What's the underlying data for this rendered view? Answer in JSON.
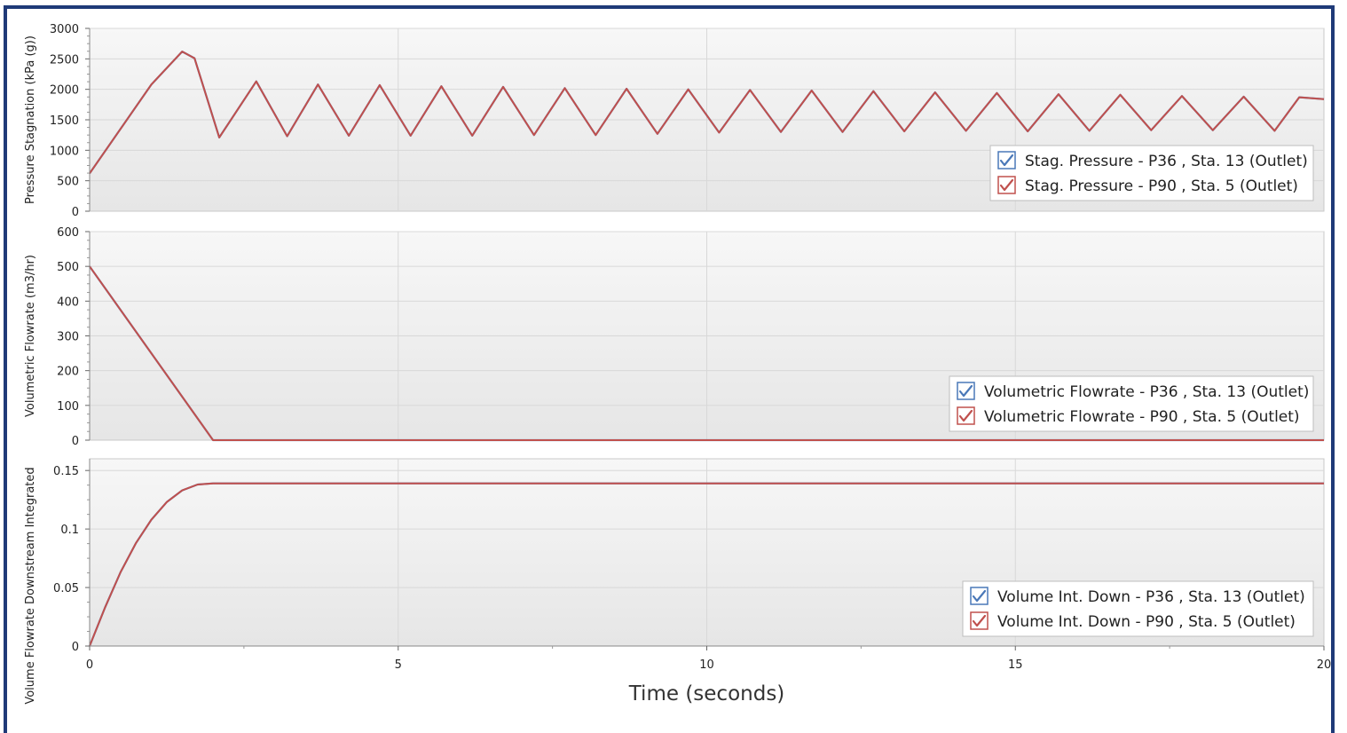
{
  "colors": {
    "series_p36": "#4a78b8",
    "series_p90": "#c0504d",
    "frame": "#1f3a78",
    "grid": "#d8d8d8",
    "plot_top": "#f7f7f7",
    "plot_bottom": "#e6e6e6"
  },
  "chart_data": [
    {
      "type": "line",
      "ylabel": "Pressure Stagnation (kPa (g))",
      "ylim": [
        0,
        3000
      ],
      "yticks": [
        "0",
        "500",
        "1000",
        "1500",
        "2000",
        "2500",
        "3000"
      ],
      "xlim": [
        0,
        20
      ],
      "grid": true,
      "legend_position": "bottom-right",
      "legend": [
        {
          "label": "Stag. Pressure - P36 , Sta. 13 (Outlet)",
          "color_key": "series_p36",
          "checked": true
        },
        {
          "label": "Stag. Pressure - P90 , Sta. 5 (Outlet)",
          "color_key": "series_p90",
          "checked": true
        }
      ],
      "series": [
        {
          "name": "Stag. Pressure - P36 , Sta. 13 (Outlet)",
          "color_key": "series_p36",
          "x": [
            0,
            1.0,
            1.5,
            1.7,
            2.1,
            2.7,
            3.2,
            3.7,
            4.2,
            4.7,
            5.2,
            5.7,
            6.2,
            6.7,
            7.2,
            7.7,
            8.2,
            8.7,
            9.2,
            9.7,
            10.2,
            10.7,
            11.2,
            11.7,
            12.2,
            12.7,
            13.2,
            13.7,
            14.2,
            14.7,
            15.2,
            15.7,
            16.2,
            16.7,
            17.2,
            17.7,
            18.2,
            18.7,
            19.2,
            19.6,
            20.0
          ],
          "y": [
            620,
            2080,
            2620,
            2510,
            1210,
            2130,
            1230,
            2080,
            1240,
            2070,
            1240,
            2050,
            1240,
            2040,
            1250,
            2020,
            1250,
            2010,
            1270,
            2000,
            1290,
            1990,
            1300,
            1980,
            1300,
            1970,
            1310,
            1950,
            1320,
            1940,
            1310,
            1920,
            1320,
            1910,
            1330,
            1890,
            1330,
            1880,
            1320,
            1870,
            1840
          ]
        },
        {
          "name": "Stag. Pressure - P90 , Sta. 5 (Outlet)",
          "color_key": "series_p90",
          "x": [
            0,
            1.0,
            1.5,
            1.7,
            2.1,
            2.7,
            3.2,
            3.7,
            4.2,
            4.7,
            5.2,
            5.7,
            6.2,
            6.7,
            7.2,
            7.7,
            8.2,
            8.7,
            9.2,
            9.7,
            10.2,
            10.7,
            11.2,
            11.7,
            12.2,
            12.7,
            13.2,
            13.7,
            14.2,
            14.7,
            15.2,
            15.7,
            16.2,
            16.7,
            17.2,
            17.7,
            18.2,
            18.7,
            19.2,
            19.6,
            20.0
          ],
          "y": [
            620,
            2080,
            2620,
            2510,
            1210,
            2130,
            1230,
            2080,
            1240,
            2070,
            1240,
            2050,
            1240,
            2040,
            1250,
            2020,
            1250,
            2010,
            1270,
            2000,
            1290,
            1990,
            1300,
            1980,
            1300,
            1970,
            1310,
            1950,
            1320,
            1940,
            1310,
            1920,
            1320,
            1910,
            1330,
            1890,
            1330,
            1880,
            1320,
            1870,
            1840
          ]
        }
      ]
    },
    {
      "type": "line",
      "ylabel": "Volumetric Flowrate (m3/hr)",
      "ylim": [
        0,
        600
      ],
      "yticks": [
        "0",
        "100",
        "200",
        "300",
        "400",
        "500",
        "600"
      ],
      "xlim": [
        0,
        20
      ],
      "grid": true,
      "legend_position": "bottom-right",
      "legend": [
        {
          "label": "Volumetric Flowrate - P36 , Sta. 13 (Outlet)",
          "color_key": "series_p36",
          "checked": true
        },
        {
          "label": "Volumetric Flowrate - P90 , Sta. 5 (Outlet)",
          "color_key": "series_p90",
          "checked": true
        }
      ],
      "series": [
        {
          "name": "Volumetric Flowrate - P36 , Sta. 13 (Outlet)",
          "color_key": "series_p36",
          "x": [
            0,
            2.0,
            20.0
          ],
          "y": [
            500,
            0,
            0
          ]
        },
        {
          "name": "Volumetric Flowrate - P90 , Sta. 5 (Outlet)",
          "color_key": "series_p90",
          "x": [
            0,
            2.0,
            20.0
          ],
          "y": [
            500,
            0,
            0
          ]
        }
      ]
    },
    {
      "type": "line",
      "ylabel": "Volume Flowrate Downstream Integrated",
      "ylim": [
        0,
        0.16
      ],
      "yticks": [
        "0",
        "0.05",
        "0.1",
        "0.15"
      ],
      "xlim": [
        0,
        20
      ],
      "xticks": [
        "0",
        "5",
        "10",
        "15",
        "20"
      ],
      "xlabel": "Time (seconds)",
      "grid": true,
      "legend_position": "bottom-right",
      "legend": [
        {
          "label": "Volume Int. Down - P36 , Sta. 13 (Outlet)",
          "color_key": "series_p36",
          "checked": true
        },
        {
          "label": "Volume Int. Down - P90 , Sta. 5 (Outlet)",
          "color_key": "series_p90",
          "checked": true
        }
      ],
      "series": [
        {
          "name": "Volume Int. Down - P36 , Sta. 13 (Outlet)",
          "color_key": "series_p36",
          "x": [
            0,
            0.25,
            0.5,
            0.75,
            1.0,
            1.25,
            1.5,
            1.75,
            2.0,
            20.0
          ],
          "y": [
            0,
            0.033,
            0.063,
            0.088,
            0.108,
            0.123,
            0.133,
            0.138,
            0.139,
            0.139
          ]
        },
        {
          "name": "Volume Int. Down - P90 , Sta. 5 (Outlet)",
          "color_key": "series_p90",
          "x": [
            0,
            0.25,
            0.5,
            0.75,
            1.0,
            1.25,
            1.5,
            1.75,
            2.0,
            20.0
          ],
          "y": [
            0,
            0.033,
            0.063,
            0.088,
            0.108,
            0.123,
            0.133,
            0.138,
            0.139,
            0.139
          ]
        }
      ]
    }
  ]
}
